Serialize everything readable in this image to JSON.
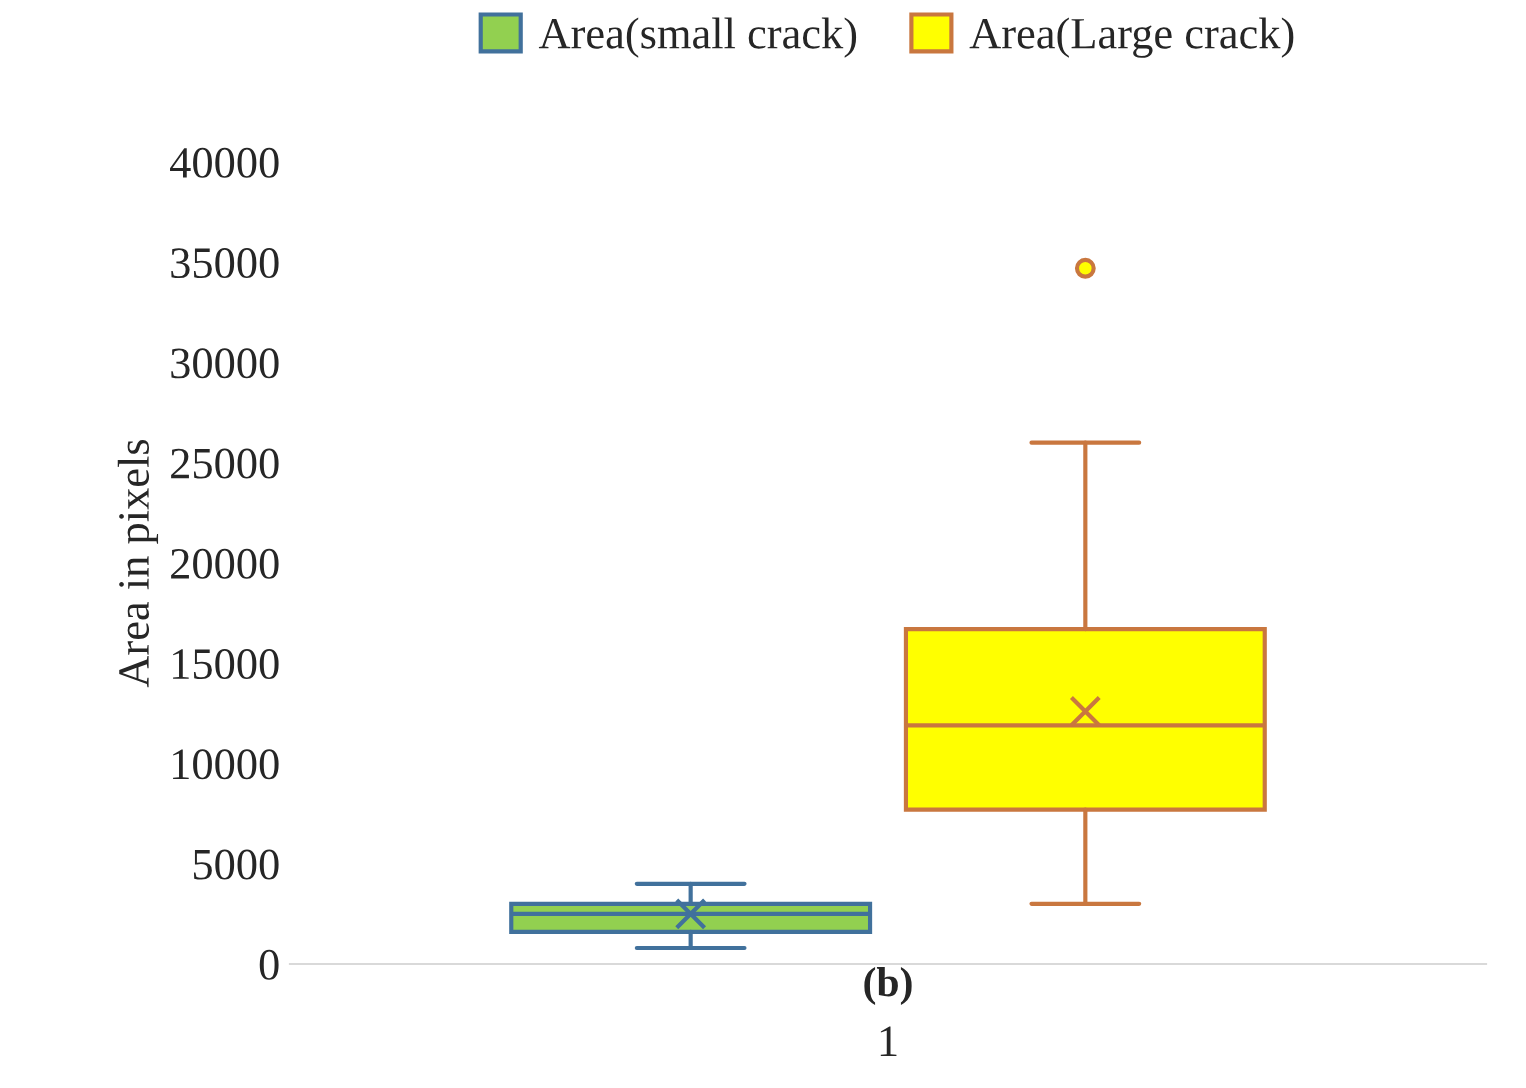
{
  "chart_data": {
    "type": "box",
    "ylabel": "Area in pixels",
    "categories": [
      "1"
    ],
    "series": [
      {
        "name": "Area(small crack)",
        "color": "#92d050",
        "boxes": [
          {
            "low": 800,
            "q1": 1600,
            "median": 2500,
            "q3": 3000,
            "high": 4000,
            "mean": 2500
          }
        ]
      },
      {
        "name": "Area(Large crack)",
        "color": "#ffff00",
        "boxes": [
          {
            "low": 3000,
            "q1": 7700,
            "median": 11900,
            "q3": 16700,
            "high": 26000,
            "mean": 12600,
            "outliers": [
              34700
            ]
          }
        ]
      }
    ],
    "ylim": [
      0,
      40000
    ],
    "yticks": [
      0,
      5000,
      10000,
      15000,
      20000,
      25000,
      30000,
      35000,
      40000
    ],
    "legend": "top",
    "grid": false,
    "annotations": [
      "(b)"
    ]
  }
}
